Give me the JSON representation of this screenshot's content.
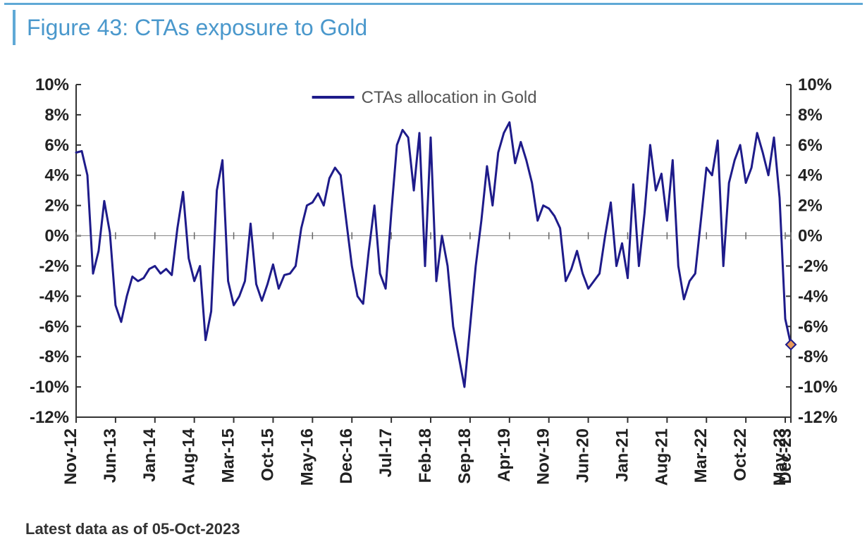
{
  "title": "Figure 43: CTAs exposure to Gold",
  "footnote": "Latest data as of 05-Oct-2023",
  "chart": {
    "type": "line",
    "legend_label": "CTAs allocation in Gold",
    "line_color": "#1e1b8a",
    "line_width": 3,
    "marker_color_fill": "#e89a5a",
    "marker_color_stroke": "#1e1b8a",
    "background_color": "#ffffff",
    "axis_color": "#333333",
    "tick_color": "#333333",
    "zero_line_emphasis": true,
    "y": {
      "min": -12,
      "max": 10,
      "ticks": [
        10,
        8,
        6,
        4,
        2,
        0,
        -2,
        -4,
        -6,
        -8,
        -10,
        -12
      ],
      "labels": [
        "10%",
        "8%",
        "6%",
        "4%",
        "2%",
        "0%",
        "-2%",
        "-4%",
        "-6%",
        "-8%",
        "-10%",
        "-12%"
      ],
      "dual_axis": true,
      "label_fontsize": 24
    },
    "x": {
      "ticks_index": [
        0,
        7,
        14,
        21,
        28,
        35,
        42,
        49,
        56,
        63,
        70,
        77,
        84,
        91,
        98,
        105,
        112,
        119,
        126,
        133
      ],
      "labels": [
        "Nov-12",
        "Jun-13",
        "Jan-14",
        "Aug-14",
        "Mar-15",
        "Oct-15",
        "May-16",
        "Dec-16",
        "Jul-17",
        "Feb-18",
        "Sep-18",
        "Apr-19",
        "Nov-19",
        "Jun-20",
        "Jan-21",
        "Aug-21",
        "Mar-22",
        "Oct-22",
        "May-23",
        "Dec-23"
      ],
      "label_fontsize": 24,
      "rotation": -90
    },
    "series": [
      5.5,
      5.6,
      4.0,
      -2.5,
      -1.0,
      2.3,
      0.2,
      -4.6,
      -5.7,
      -4.0,
      -2.7,
      -3.0,
      -2.8,
      -2.2,
      -2.0,
      -2.5,
      -2.2,
      -2.6,
      0.5,
      2.9,
      -1.5,
      -3.0,
      -2.0,
      -6.9,
      -5.0,
      3.0,
      5.0,
      -3.0,
      -4.6,
      -4.0,
      -3.0,
      0.8,
      -3.2,
      -4.3,
      -3.2,
      -1.9,
      -3.5,
      -2.6,
      -2.5,
      -2.0,
      0.5,
      2.0,
      2.2,
      2.8,
      2.0,
      3.8,
      4.5,
      4.0,
      1.0,
      -2.0,
      -4.0,
      -4.5,
      -1.0,
      2.0,
      -2.5,
      -3.5,
      1.5,
      6.0,
      7.0,
      6.5,
      3.0,
      6.8,
      -2.0,
      6.5,
      -3.0,
      0.0,
      -2.0,
      -6.0,
      -8.0,
      -10.0,
      -6.0,
      -2.0,
      1.0,
      4.6,
      2.0,
      5.5,
      6.8,
      7.5,
      4.8,
      6.2,
      5.0,
      3.5,
      1.0,
      2.0,
      1.8,
      1.3,
      0.5,
      -3.0,
      -2.2,
      -1.0,
      -2.5,
      -3.5,
      -3.0,
      -2.5,
      0.0,
      2.2,
      -2.0,
      -0.5,
      -2.8,
      3.4,
      -2.0,
      1.5,
      6.0,
      3.0,
      4.1,
      1.0,
      5.0,
      -2.0,
      -4.2,
      -3.0,
      -2.5,
      1.0,
      4.5,
      4.0,
      6.3,
      -2.0,
      3.5,
      5.0,
      6.0,
      3.5,
      4.5,
      6.8,
      5.5,
      4.0,
      6.5,
      2.5,
      -5.5,
      -7.2
    ],
    "last_point_marker": {
      "index": 127,
      "value": -7.2
    },
    "title_fontsize": 32,
    "title_color": "#4a98cc"
  }
}
